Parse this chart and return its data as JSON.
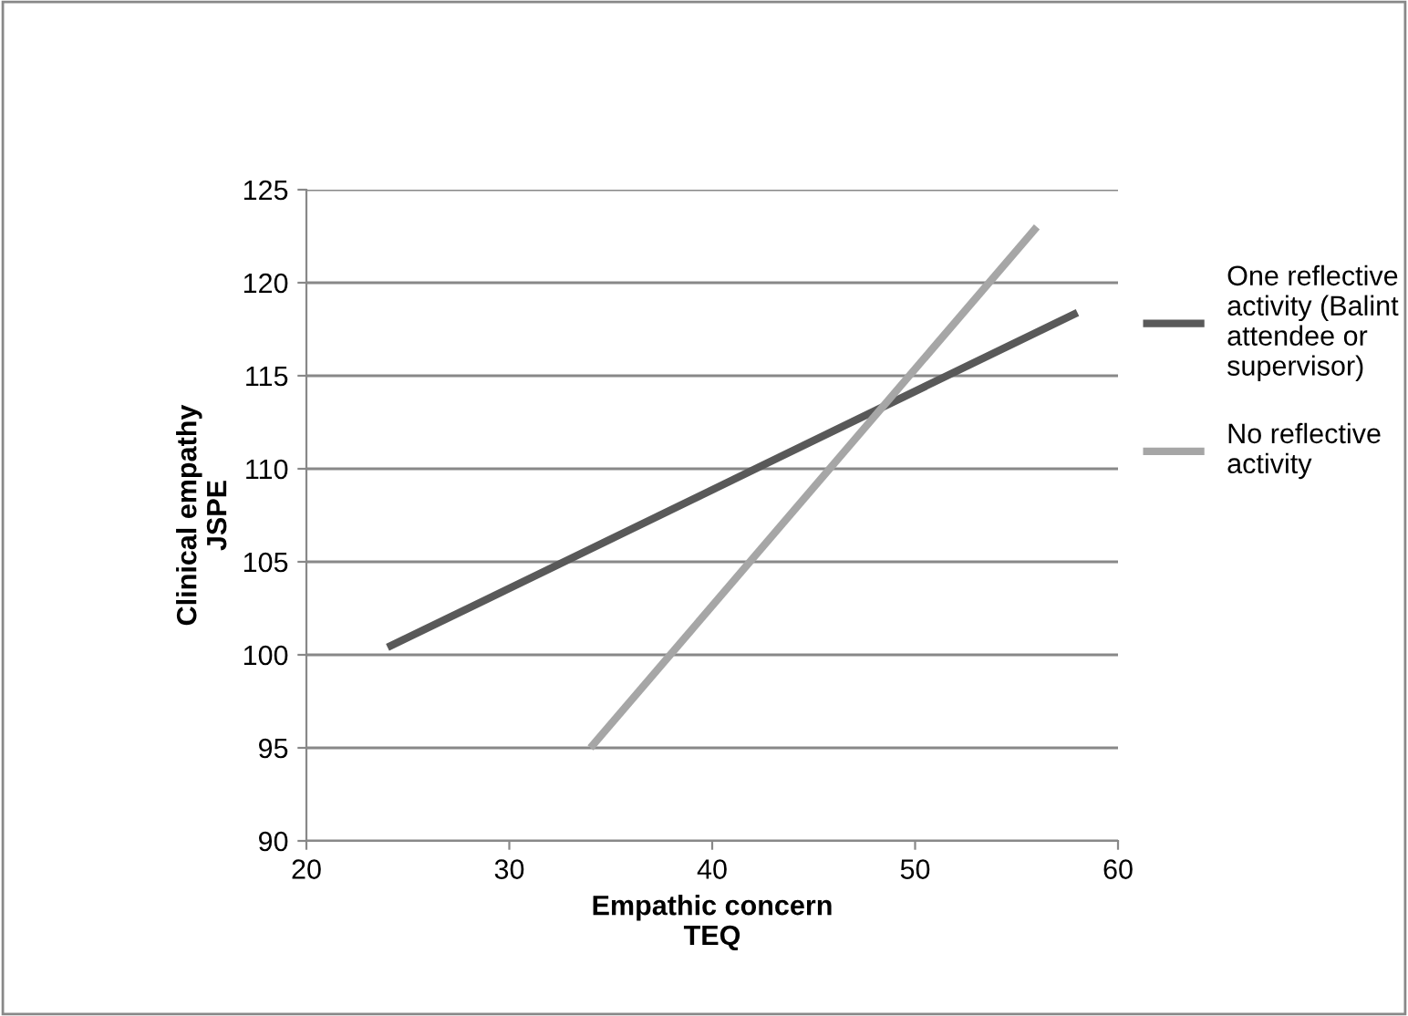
{
  "chart_data": {
    "type": "line",
    "xlabel": "Empathic concern\nTEQ",
    "ylabel": "Clinical empathy\nJSPE",
    "series": [
      {
        "name": "One reflective\nactivity (Balint\nattendee or\nsupervisor)",
        "color": "#595959",
        "x": [
          24,
          58
        ],
        "values": [
          100.4,
          118.4
        ]
      },
      {
        "name": "No reflective\nactivity",
        "color": "#a6a6a6",
        "x": [
          34,
          56
        ],
        "values": [
          95,
          123
        ]
      }
    ],
    "xlim": [
      20,
      60
    ],
    "xticks": [
      20,
      30,
      40,
      50,
      60
    ],
    "ylim": [
      90,
      125
    ],
    "yticks": [
      90,
      95,
      100,
      105,
      110,
      115,
      120,
      125
    ],
    "grid": "y",
    "legend": "right",
    "marker": "none",
    "line_style": "solid"
  }
}
